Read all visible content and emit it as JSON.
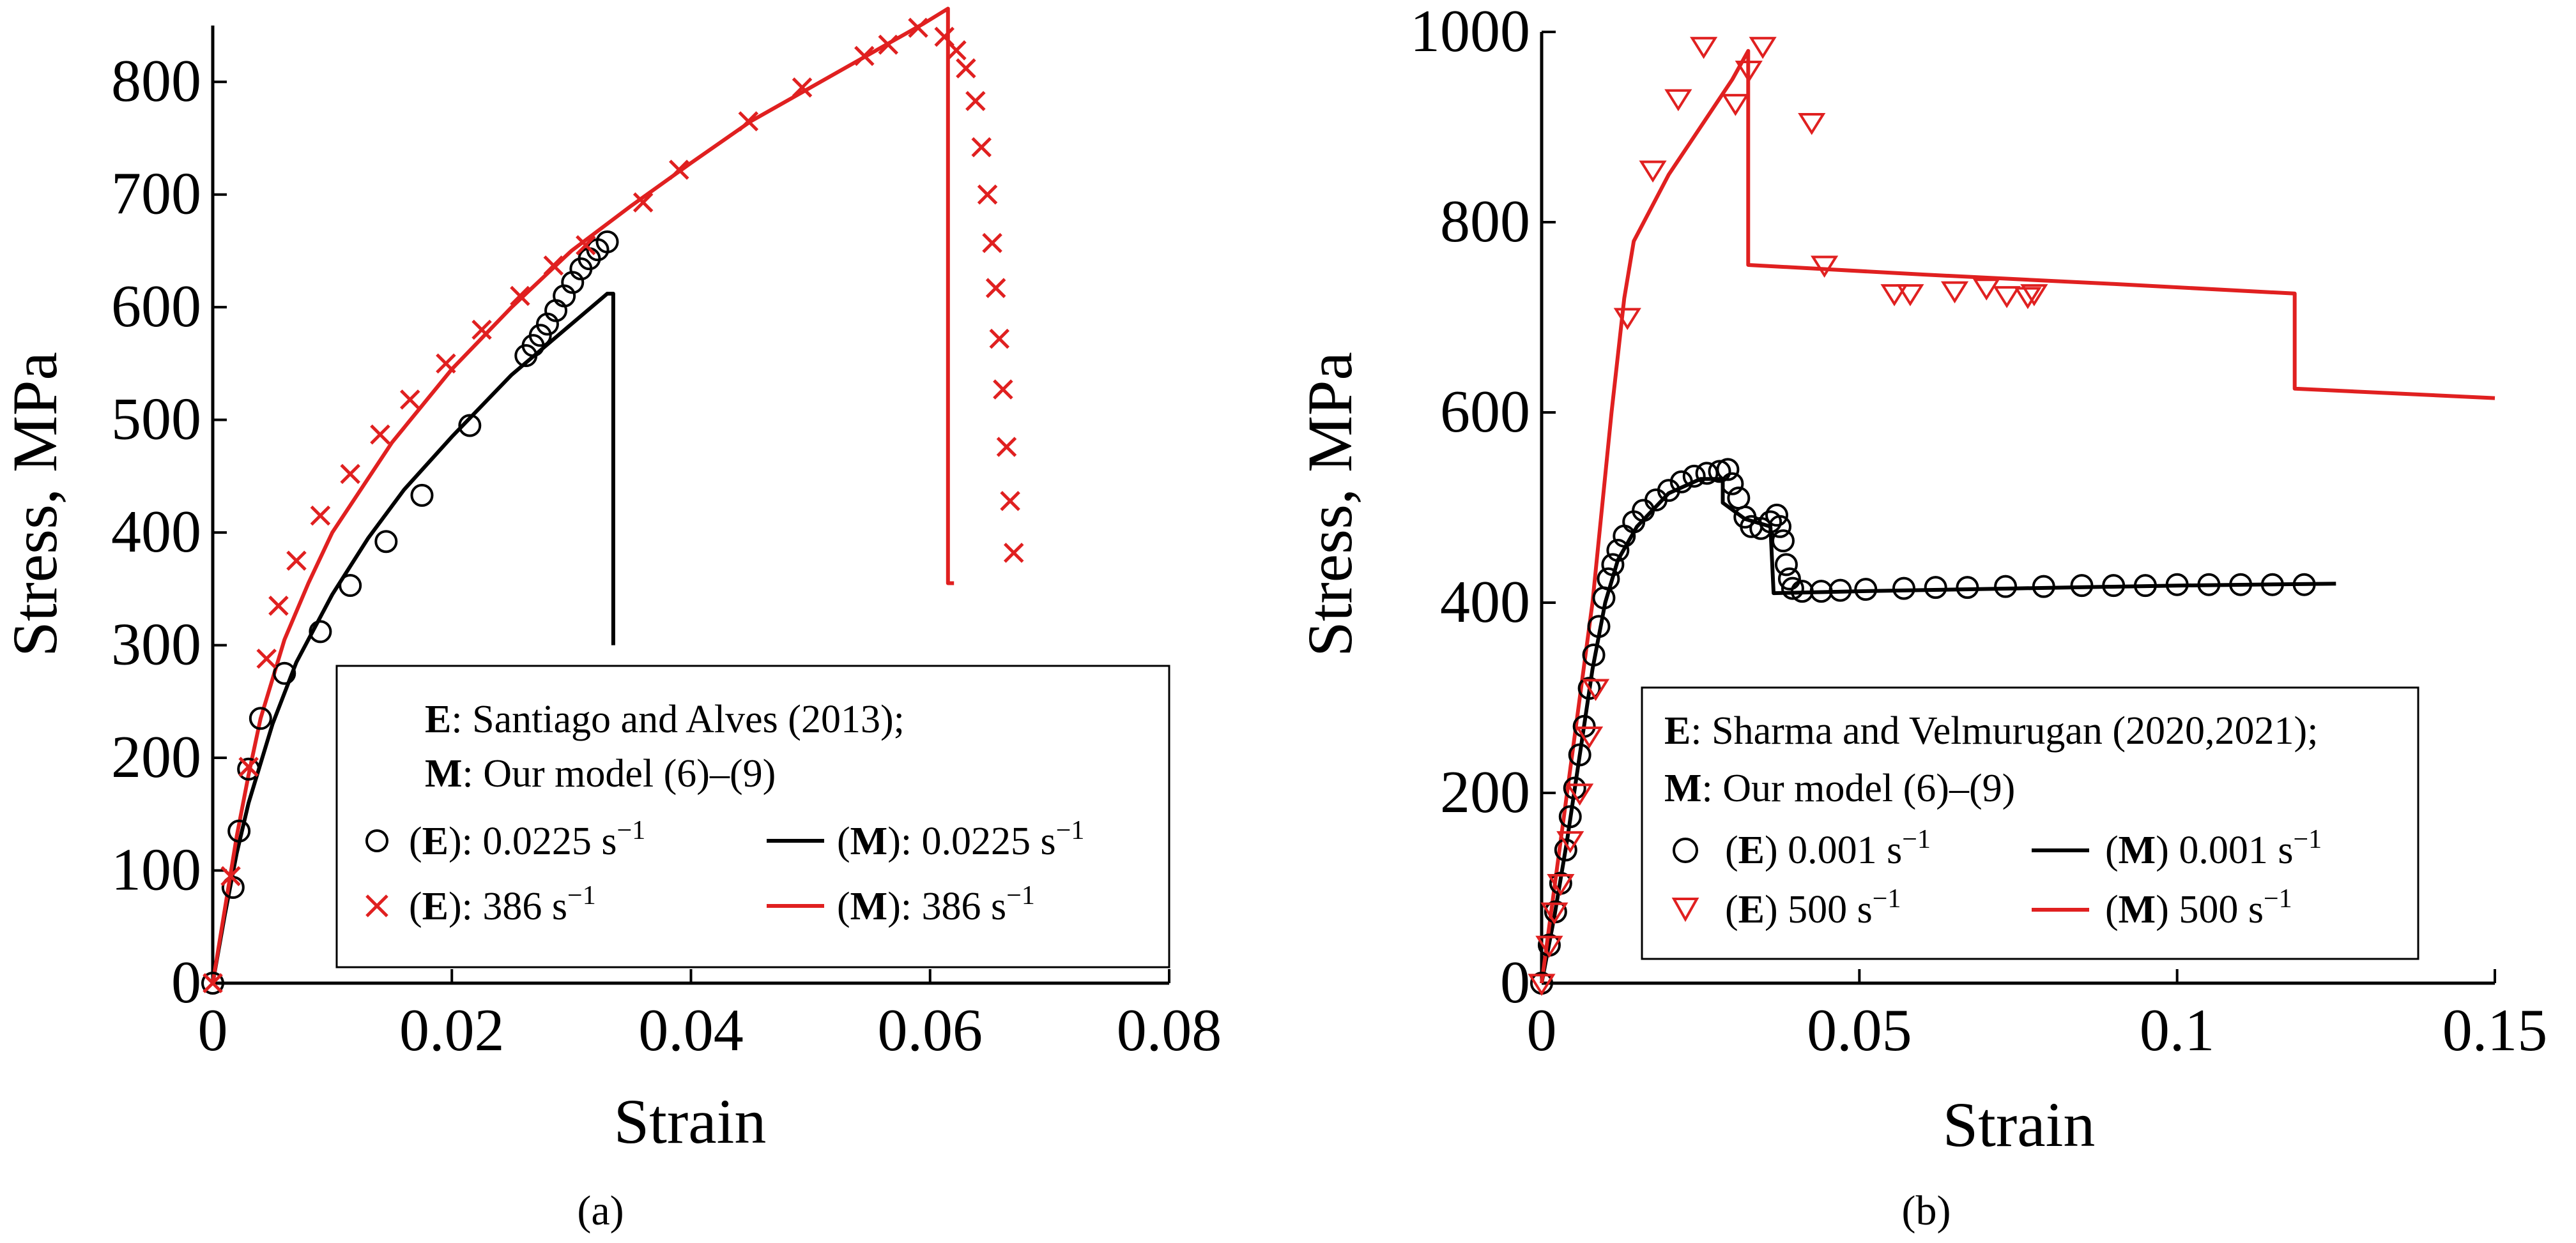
{
  "chart_data": [
    {
      "type": "line",
      "panel_label": "(a)",
      "xlabel": "Strain",
      "ylabel": "Stress, MPa",
      "xlim": [
        0,
        0.08
      ],
      "ylim": [
        0,
        850
      ],
      "xticks": [
        0,
        0.02,
        0.04,
        0.06,
        0.08
      ],
      "xtick_labels": [
        "0",
        "0.02",
        "0.04",
        "0.06",
        "0.08"
      ],
      "yticks": [
        0,
        100,
        200,
        300,
        400,
        500,
        600,
        700,
        800
      ],
      "ytick_labels": [
        "0",
        "100",
        "200",
        "300",
        "400",
        "500",
        "600",
        "700",
        "800"
      ],
      "legend": {
        "line1_bold": "E",
        "line1_text": ": Santiago and Alves (2013);",
        "line2_bold": "M",
        "line2_text": ": Our model (6)–(9)",
        "entries": [
          {
            "prefix": "(",
            "bold": "E",
            "suffix": "): 0.0225 s",
            "sup": "−1",
            "series": "E1"
          },
          {
            "prefix": "(",
            "bold": "M",
            "suffix": "): 0.0225 s",
            "sup": "−1",
            "series": "M1"
          },
          {
            "prefix": "(",
            "bold": "E",
            "suffix": "): 386 s",
            "sup": "−1",
            "series": "E2"
          },
          {
            "prefix": "(",
            "bold": "M",
            "suffix": "): 386 s",
            "sup": "−1",
            "series": "M2"
          }
        ]
      },
      "series": [
        {
          "name": "(E): 0.0225 s−1",
          "id": "E1",
          "kind": "marker",
          "marker": "circle",
          "color": "#000000",
          "points": [
            [
              0.0,
              0
            ],
            [
              0.0017,
              85
            ],
            [
              0.0022,
              135
            ],
            [
              0.003,
              190
            ],
            [
              0.004,
              235
            ],
            [
              0.006,
              275
            ],
            [
              0.009,
              312
            ],
            [
              0.0115,
              353
            ],
            [
              0.0145,
              392
            ],
            [
              0.0175,
              433
            ],
            [
              0.0215,
              495
            ],
            [
              0.0262,
              557
            ],
            [
              0.0268,
              566
            ],
            [
              0.0274,
              575
            ],
            [
              0.028,
              585
            ],
            [
              0.0287,
              597
            ],
            [
              0.0294,
              610
            ],
            [
              0.0301,
              622
            ],
            [
              0.0308,
              634
            ],
            [
              0.0315,
              643
            ],
            [
              0.0322,
              651
            ],
            [
              0.033,
              658
            ]
          ]
        },
        {
          "name": "(M): 0.0225 s−1",
          "id": "M1",
          "kind": "line",
          "color": "#000000",
          "points": [
            [
              0,
              0
            ],
            [
              0.001,
              60
            ],
            [
              0.002,
              115
            ],
            [
              0.003,
              160
            ],
            [
              0.005,
              230
            ],
            [
              0.007,
              285
            ],
            [
              0.01,
              345
            ],
            [
              0.013,
              395
            ],
            [
              0.016,
              438
            ],
            [
              0.02,
              485
            ],
            [
              0.025,
              540
            ],
            [
              0.03,
              585
            ],
            [
              0.033,
              612
            ],
            [
              0.0335,
              612
            ],
            [
              0.0335,
              300
            ]
          ]
        },
        {
          "name": "(E): 386 s−1",
          "id": "E2",
          "kind": "marker",
          "marker": "cross",
          "color": "#e02020",
          "points": [
            [
              0.0,
              0
            ],
            [
              0.0015,
              95
            ],
            [
              0.003,
              192
            ],
            [
              0.0045,
              288
            ],
            [
              0.0055,
              335
            ],
            [
              0.007,
              375
            ],
            [
              0.009,
              415
            ],
            [
              0.0115,
              452
            ],
            [
              0.014,
              487
            ],
            [
              0.0165,
              518
            ],
            [
              0.0195,
              550
            ],
            [
              0.0225,
              580
            ],
            [
              0.0257,
              610
            ],
            [
              0.0285,
              637
            ],
            [
              0.0312,
              655
            ],
            [
              0.036,
              693
            ],
            [
              0.039,
              722
            ],
            [
              0.0448,
              765
            ],
            [
              0.0493,
              795
            ],
            [
              0.0545,
              823
            ],
            [
              0.0565,
              833
            ],
            [
              0.059,
              848
            ],
            [
              0.0612,
              840
            ],
            [
              0.0622,
              828
            ],
            [
              0.063,
              812
            ],
            [
              0.0638,
              783
            ],
            [
              0.0643,
              742
            ],
            [
              0.0648,
              700
            ],
            [
              0.0652,
              657
            ],
            [
              0.0655,
              617
            ],
            [
              0.0658,
              572
            ],
            [
              0.0661,
              527
            ],
            [
              0.0664,
              476
            ],
            [
              0.0667,
              428
            ],
            [
              0.067,
              382
            ]
          ]
        },
        {
          "name": "(M): 386 s−1",
          "id": "M2",
          "kind": "line",
          "color": "#e02020",
          "points": [
            [
              0,
              0
            ],
            [
              0.001,
              65
            ],
            [
              0.002,
              130
            ],
            [
              0.003,
              185
            ],
            [
              0.004,
              235
            ],
            [
              0.006,
              305
            ],
            [
              0.008,
              355
            ],
            [
              0.01,
              400
            ],
            [
              0.015,
              480
            ],
            [
              0.02,
              545
            ],
            [
              0.025,
              600
            ],
            [
              0.03,
              650
            ],
            [
              0.035,
              690
            ],
            [
              0.04,
              728
            ],
            [
              0.045,
              765
            ],
            [
              0.05,
              795
            ],
            [
              0.055,
              825
            ],
            [
              0.0595,
              852
            ],
            [
              0.0615,
              865
            ],
            [
              0.0615,
              355
            ],
            [
              0.062,
              355
            ]
          ]
        }
      ]
    },
    {
      "type": "line",
      "panel_label": "(b)",
      "xlabel": "Strain",
      "ylabel": "Stress, MPa",
      "xlim": [
        0,
        0.15
      ],
      "ylim": [
        0,
        1000
      ],
      "xticks": [
        0,
        0.05,
        0.1,
        0.15
      ],
      "xtick_labels": [
        "0",
        "0.05",
        "0.1",
        "0.15"
      ],
      "yticks": [
        0,
        200,
        400,
        600,
        800,
        1000
      ],
      "ytick_labels": [
        "0",
        "200",
        "400",
        "600",
        "800",
        "1000"
      ],
      "legend": {
        "line1_bold": "E",
        "line1_text": ": Sharma and Velmurugan (2020,2021);",
        "line2_bold": "M",
        "line2_text": ": Our model (6)–(9)",
        "entries": [
          {
            "prefix": "(",
            "bold": "E",
            "suffix": ") 0.001 s",
            "sup": "−1",
            "series": "E1"
          },
          {
            "prefix": "(",
            "bold": "M",
            "suffix": ") 0.001 s",
            "sup": "−1",
            "series": "M1"
          },
          {
            "prefix": "(",
            "bold": "E",
            "suffix": ") 500 s",
            "sup": "−1",
            "series": "E2"
          },
          {
            "prefix": "(",
            "bold": "M",
            "suffix": ") 500 s",
            "sup": "−1",
            "series": "M2"
          }
        ]
      },
      "series": [
        {
          "name": "(E) 0.001 s−1",
          "id": "E1",
          "kind": "marker",
          "marker": "circle",
          "color": "#000000",
          "points": [
            [
              0.0,
              0
            ],
            [
              0.0012,
              40
            ],
            [
              0.0022,
              75
            ],
            [
              0.003,
              105
            ],
            [
              0.0038,
              140
            ],
            [
              0.0045,
              175
            ],
            [
              0.0052,
              205
            ],
            [
              0.006,
              240
            ],
            [
              0.0067,
              270
            ],
            [
              0.0075,
              310
            ],
            [
              0.0082,
              345
            ],
            [
              0.009,
              375
            ],
            [
              0.0098,
              405
            ],
            [
              0.0105,
              425
            ],
            [
              0.0112,
              440
            ],
            [
              0.012,
              455
            ],
            [
              0.013,
              470
            ],
            [
              0.0145,
              485
            ],
            [
              0.016,
              497
            ],
            [
              0.018,
              508
            ],
            [
              0.02,
              518
            ],
            [
              0.022,
              527
            ],
            [
              0.024,
              533
            ],
            [
              0.026,
              536
            ],
            [
              0.028,
              538
            ],
            [
              0.0293,
              540
            ],
            [
              0.03,
              525
            ],
            [
              0.031,
              510
            ],
            [
              0.032,
              490
            ],
            [
              0.033,
              480
            ],
            [
              0.0345,
              478
            ],
            [
              0.036,
              485
            ],
            [
              0.037,
              492
            ],
            [
              0.0375,
              480
            ],
            [
              0.038,
              465
            ],
            [
              0.0385,
              440
            ],
            [
              0.039,
              425
            ],
            [
              0.0395,
              415
            ],
            [
              0.041,
              412
            ],
            [
              0.044,
              412
            ],
            [
              0.047,
              413
            ],
            [
              0.051,
              414
            ],
            [
              0.057,
              415
            ],
            [
              0.062,
              416
            ],
            [
              0.067,
              416
            ],
            [
              0.073,
              417
            ],
            [
              0.079,
              417
            ],
            [
              0.085,
              418
            ],
            [
              0.09,
              418
            ],
            [
              0.095,
              418
            ],
            [
              0.1,
              419
            ],
            [
              0.105,
              419
            ],
            [
              0.11,
              419
            ],
            [
              0.115,
              419
            ],
            [
              0.12,
              419
            ]
          ]
        },
        {
          "name": "(M) 0.001 s−1",
          "id": "M1",
          "kind": "line",
          "color": "#000000",
          "points": [
            [
              0,
              0
            ],
            [
              0.002,
              70
            ],
            [
              0.004,
              150
            ],
            [
              0.006,
              240
            ],
            [
              0.008,
              330
            ],
            [
              0.01,
              400
            ],
            [
              0.012,
              445
            ],
            [
              0.015,
              480
            ],
            [
              0.02,
              515
            ],
            [
              0.025,
              530
            ],
            [
              0.0285,
              530
            ],
            [
              0.0285,
              505
            ],
            [
              0.032,
              488
            ],
            [
              0.036,
              480
            ],
            [
              0.0365,
              410
            ],
            [
              0.05,
              412
            ],
            [
              0.075,
              415
            ],
            [
              0.1,
              418
            ],
            [
              0.125,
              420
            ]
          ]
        },
        {
          "name": "(E) 500 s−1",
          "id": "E2",
          "kind": "marker",
          "marker": "triangle-down",
          "color": "#e02020",
          "points": [
            [
              0.0,
              0
            ],
            [
              0.0012,
              40
            ],
            [
              0.002,
              75
            ],
            [
              0.003,
              105
            ],
            [
              0.0045,
              150
            ],
            [
              0.006,
              200
            ],
            [
              0.0075,
              260
            ],
            [
              0.0085,
              310
            ],
            [
              0.0135,
              700
            ],
            [
              0.0175,
              855
            ],
            [
              0.0215,
              930
            ],
            [
              0.0255,
              985
            ],
            [
              0.0305,
              925
            ],
            [
              0.0326,
              960
            ],
            [
              0.0348,
              985
            ],
            [
              0.0425,
              905
            ],
            [
              0.0445,
              755
            ],
            [
              0.0555,
              725
            ],
            [
              0.058,
              725
            ],
            [
              0.065,
              728
            ],
            [
              0.07,
              731
            ],
            [
              0.0732,
              723
            ],
            [
              0.0765,
              722
            ],
            [
              0.0775,
              725
            ]
          ]
        },
        {
          "name": "(M) 500 s−1",
          "id": "M2",
          "kind": "line",
          "color": "#e02020",
          "points": [
            [
              0,
              0
            ],
            [
              0.004,
              200
            ],
            [
              0.008,
              400
            ],
            [
              0.011,
              600
            ],
            [
              0.013,
              720
            ],
            [
              0.0145,
              780
            ],
            [
              0.02,
              850
            ],
            [
              0.025,
              900
            ],
            [
              0.03,
              950
            ],
            [
              0.0325,
              980
            ],
            [
              0.0325,
              755
            ],
            [
              0.06,
              745
            ],
            [
              0.09,
              735
            ],
            [
              0.1185,
              725
            ],
            [
              0.1185,
              625
            ],
            [
              0.15,
              615
            ]
          ]
        }
      ]
    }
  ]
}
